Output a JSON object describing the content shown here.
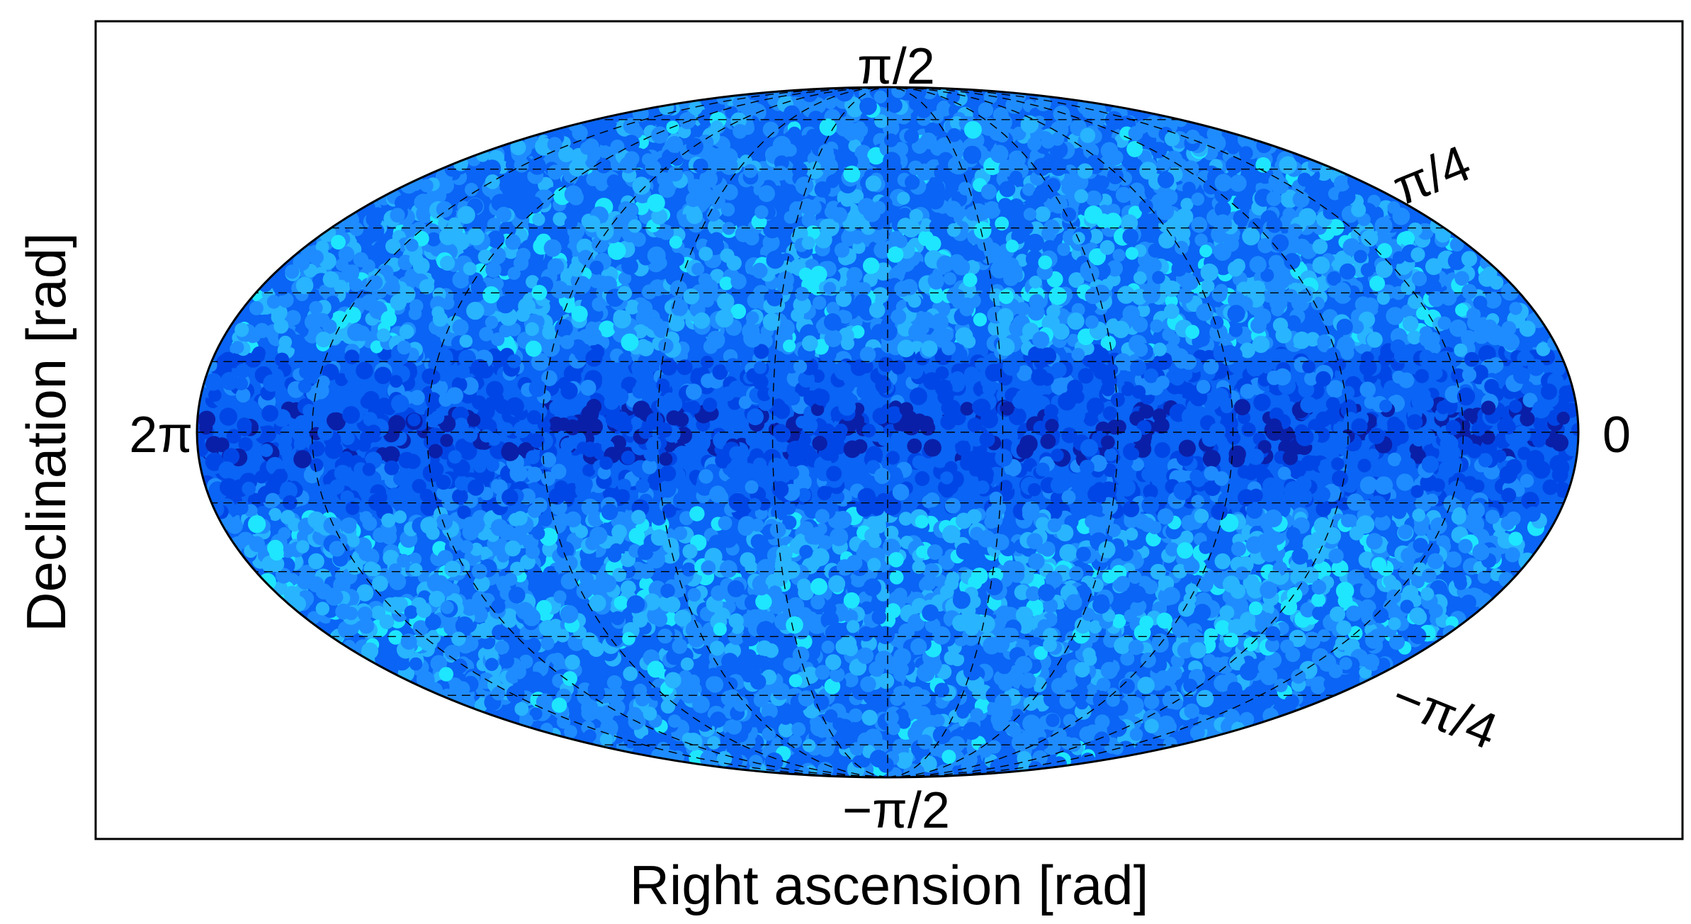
{
  "chart_data": {
    "type": "scatter",
    "projection": "mollweide",
    "title": "",
    "xlabel": "Right ascension [rad]",
    "ylabel": "Declination [rad]",
    "xlim": [
      0,
      6.2832
    ],
    "ylim": [
      -1.5708,
      1.5708
    ],
    "x_direction": "reversed",
    "grid": true,
    "grid_style": "dashed",
    "legend": "none",
    "tick_labels": {
      "dec_top": "π/2",
      "dec_upper": "π/4",
      "dec_lower": "−π/4",
      "dec_bottom": "−π/2",
      "ra_left": "2π",
      "ra_right": "0"
    },
    "point_description": "dense uniform coverage of celestial sphere, colored by local density",
    "colors": {
      "dense": "#0a1fa8",
      "medium_dark": "#0046e6",
      "medium": "#0a64f5",
      "light": "#1e8cff",
      "lighter": "#28b4ff",
      "lightest": "#1ee6ff",
      "boundary": "#000000",
      "frame": "#000000"
    }
  }
}
